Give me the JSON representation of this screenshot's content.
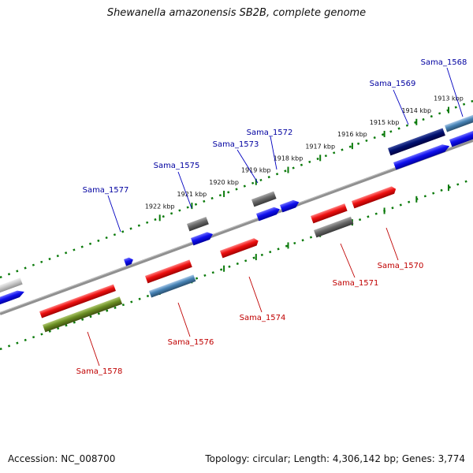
{
  "title": "Shewanella amazonensis SB2B, complete genome",
  "footer": {
    "accession": "Accession: NC_008700",
    "summary": "Topology: circular; Length: 4,306,142 bp; Genes: 3,774"
  },
  "colors": {
    "red": "#e01010",
    "blue": "#1010e0",
    "navy": "#000070",
    "gray": "#606060",
    "steelblue": "#4682b4",
    "olive": "#6b8e23",
    "lightgray": "#c8c8c8",
    "backbone": "#808080",
    "tick_green": "#007000",
    "label_blue": "#0000a0",
    "label_red": "#c00000"
  },
  "scale": {
    "unit": "kbp",
    "ticks_kbp": [
      1913,
      1914,
      1915,
      1916,
      1917,
      1918,
      1919,
      1920,
      1921,
      1922
    ],
    "tick_labels": [
      "1913 kbp",
      "1914 kbp",
      "1915 kbp",
      "1916 kbp",
      "1917 kbp",
      "1918 kbp",
      "1919 kbp",
      "1920 kbp",
      "1921 kbp",
      "1922 kbp"
    ]
  },
  "genes_labeled_top": [
    {
      "name": "Sama_1568",
      "color": "blue"
    },
    {
      "name": "Sama_1569",
      "color": "navy"
    },
    {
      "name": "Sama_1572",
      "color": "gray"
    },
    {
      "name": "Sama_1573",
      "color": "gray"
    },
    {
      "name": "Sama_1575",
      "color": "gray"
    },
    {
      "name": "Sama_1577",
      "color": "blue"
    }
  ],
  "genes_labeled_bottom": [
    {
      "name": "Sama_1570",
      "color": "red"
    },
    {
      "name": "Sama_1571",
      "color": "gray"
    },
    {
      "name": "Sama_1574",
      "color": "red"
    },
    {
      "name": "Sama_1576",
      "color": "steelblue"
    },
    {
      "name": "Sama_1578",
      "color": "olive"
    }
  ]
}
